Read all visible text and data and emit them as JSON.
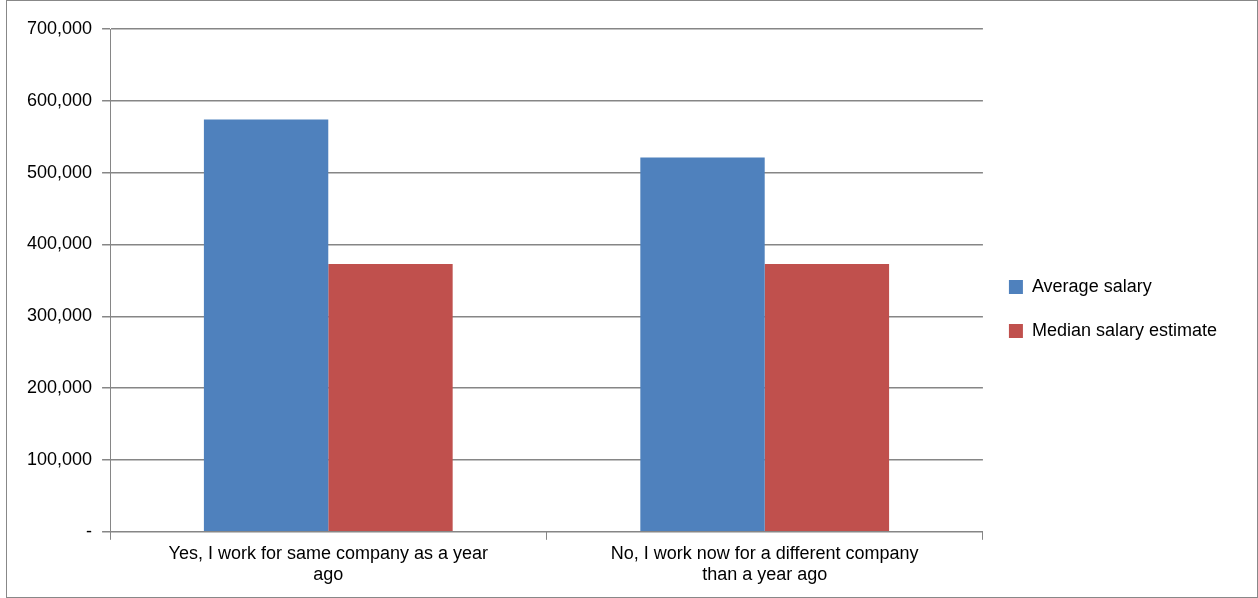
{
  "chart_data": {
    "type": "bar",
    "categories": [
      "Yes, I work for same company as a year ago",
      "No, I work now for a different company than a year ago"
    ],
    "series": [
      {
        "name": "Average salary",
        "color": "#4f81bd",
        "values": [
          574000,
          521000
        ]
      },
      {
        "name": "Median salary estimate",
        "color": "#c0504d",
        "values": [
          373000,
          373000
        ]
      }
    ],
    "ylim": [
      0,
      700000
    ],
    "yticks": [
      {
        "value": 0,
        "label": "-"
      },
      {
        "value": 100000,
        "label": "100,000"
      },
      {
        "value": 200000,
        "label": "200,000"
      },
      {
        "value": 300000,
        "label": "300,000"
      },
      {
        "value": 400000,
        "label": "400,000"
      },
      {
        "value": 500000,
        "label": "500,000"
      },
      {
        "value": 600000,
        "label": "600,000"
      },
      {
        "value": 700000,
        "label": "700,000"
      }
    ],
    "grid": "y",
    "legend": "right"
  }
}
